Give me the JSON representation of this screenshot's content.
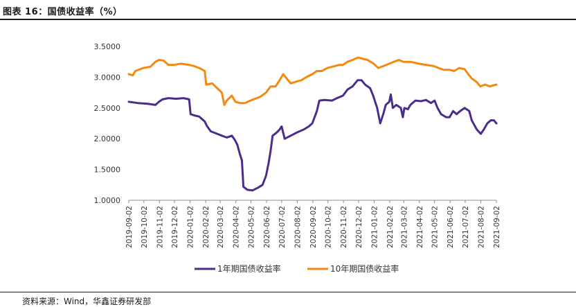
{
  "figure_title": "图表 16：国债收益率（%）",
  "source_note": "资料来源：Wind，华鑫证券研发部",
  "colors": {
    "series_1y": "#4b2c8c",
    "series_10y": "#f5890f",
    "axis": "#8c8c8c"
  },
  "chart_data": {
    "type": "line",
    "title": "",
    "xlabel": "",
    "ylabel": "",
    "ylim": [
      1.0,
      3.5
    ],
    "y_ticks": [
      "1.0000",
      "1.5000",
      "2.0000",
      "2.5000",
      "3.0000",
      "3.5000"
    ],
    "x_range": [
      "2019-09-02",
      "2021-09-02"
    ],
    "x_ticks": [
      "2019-09-02",
      "2019-10-02",
      "2019-11-02",
      "2019-12-02",
      "2020-01-02",
      "2020-02-02",
      "2020-03-02",
      "2020-04-02",
      "2020-05-02",
      "2020-06-02",
      "2020-07-02",
      "2020-08-02",
      "2020-09-02",
      "2020-10-02",
      "2020-11-02",
      "2020-12-02",
      "2021-01-02",
      "2021-02-02",
      "2021-03-02",
      "2021-04-02",
      "2021-05-02",
      "2021-06-02",
      "2021-07-02",
      "2021-08-02",
      "2021-09-02"
    ],
    "grid": false,
    "legend_position": "bottom",
    "series": [
      {
        "name": "1年期国债收益率",
        "color": "#4b2c8c",
        "points": [
          [
            "2019-09-02",
            2.6
          ],
          [
            "2019-09-20",
            2.58
          ],
          [
            "2019-10-08",
            2.57
          ],
          [
            "2019-10-25",
            2.55
          ],
          [
            "2019-11-01",
            2.6
          ],
          [
            "2019-11-08",
            2.64
          ],
          [
            "2019-11-20",
            2.66
          ],
          [
            "2019-12-05",
            2.65
          ],
          [
            "2019-12-20",
            2.66
          ],
          [
            "2019-12-31",
            2.64
          ],
          [
            "2020-01-03",
            2.4
          ],
          [
            "2020-01-10",
            2.38
          ],
          [
            "2020-01-20",
            2.36
          ],
          [
            "2020-01-31",
            2.28
          ],
          [
            "2020-02-05",
            2.2
          ],
          [
            "2020-02-12",
            2.12
          ],
          [
            "2020-02-25",
            2.08
          ],
          [
            "2020-03-05",
            2.05
          ],
          [
            "2020-03-15",
            2.02
          ],
          [
            "2020-03-25",
            2.05
          ],
          [
            "2020-03-31",
            1.98
          ],
          [
            "2020-04-05",
            1.9
          ],
          [
            "2020-04-10",
            1.75
          ],
          [
            "2020-04-14",
            1.65
          ],
          [
            "2020-04-17",
            1.22
          ],
          [
            "2020-04-25",
            1.17
          ],
          [
            "2020-05-05",
            1.16
          ],
          [
            "2020-05-15",
            1.2
          ],
          [
            "2020-05-25",
            1.25
          ],
          [
            "2020-06-01",
            1.4
          ],
          [
            "2020-06-06",
            1.6
          ],
          [
            "2020-06-10",
            1.8
          ],
          [
            "2020-06-14",
            2.05
          ],
          [
            "2020-06-22",
            2.1
          ],
          [
            "2020-06-28",
            2.15
          ],
          [
            "2020-07-02",
            2.2
          ],
          [
            "2020-07-08",
            2.0
          ],
          [
            "2020-07-20",
            2.05
          ],
          [
            "2020-08-01",
            2.1
          ],
          [
            "2020-08-15",
            2.15
          ],
          [
            "2020-08-25",
            2.2
          ],
          [
            "2020-09-01",
            2.25
          ],
          [
            "2020-09-10",
            2.45
          ],
          [
            "2020-09-15",
            2.62
          ],
          [
            "2020-09-25",
            2.63
          ],
          [
            "2020-10-10",
            2.62
          ],
          [
            "2020-10-20",
            2.66
          ],
          [
            "2020-11-01",
            2.7
          ],
          [
            "2020-11-10",
            2.8
          ],
          [
            "2020-11-20",
            2.85
          ],
          [
            "2020-11-30",
            2.95
          ],
          [
            "2020-12-08",
            2.95
          ],
          [
            "2020-12-15",
            2.88
          ],
          [
            "2020-12-25",
            2.82
          ],
          [
            "2020-12-31",
            2.7
          ],
          [
            "2021-01-08",
            2.5
          ],
          [
            "2021-01-14",
            2.25
          ],
          [
            "2021-01-20",
            2.4
          ],
          [
            "2021-01-25",
            2.55
          ],
          [
            "2021-02-01",
            2.6
          ],
          [
            "2021-02-04",
            2.72
          ],
          [
            "2021-02-08",
            2.5
          ],
          [
            "2021-02-15",
            2.55
          ],
          [
            "2021-02-24",
            2.5
          ],
          [
            "2021-02-28",
            2.35
          ],
          [
            "2021-03-03",
            2.5
          ],
          [
            "2021-03-10",
            2.48
          ],
          [
            "2021-03-15",
            2.55
          ],
          [
            "2021-03-25",
            2.62
          ],
          [
            "2021-04-05",
            2.61
          ],
          [
            "2021-04-15",
            2.63
          ],
          [
            "2021-04-25",
            2.58
          ],
          [
            "2021-05-02",
            2.62
          ],
          [
            "2021-05-08",
            2.5
          ],
          [
            "2021-05-15",
            2.4
          ],
          [
            "2021-05-25",
            2.35
          ],
          [
            "2021-06-01",
            2.35
          ],
          [
            "2021-06-08",
            2.45
          ],
          [
            "2021-06-15",
            2.4
          ],
          [
            "2021-06-22",
            2.45
          ],
          [
            "2021-07-01",
            2.5
          ],
          [
            "2021-07-10",
            2.45
          ],
          [
            "2021-07-15",
            2.3
          ],
          [
            "2021-07-25",
            2.15
          ],
          [
            "2021-08-02",
            2.08
          ],
          [
            "2021-08-08",
            2.15
          ],
          [
            "2021-08-15",
            2.25
          ],
          [
            "2021-08-22",
            2.3
          ],
          [
            "2021-08-28",
            2.3
          ],
          [
            "2021-09-02",
            2.25
          ]
        ]
      },
      {
        "name": "10年期国债收益率",
        "color": "#f5890f",
        "points": [
          [
            "2019-09-02",
            3.05
          ],
          [
            "2019-09-10",
            3.03
          ],
          [
            "2019-09-15",
            3.1
          ],
          [
            "2019-10-01",
            3.15
          ],
          [
            "2019-10-15",
            3.17
          ],
          [
            "2019-10-25",
            3.25
          ],
          [
            "2019-11-01",
            3.28
          ],
          [
            "2019-11-10",
            3.27
          ],
          [
            "2019-11-20",
            3.2
          ],
          [
            "2019-12-01",
            3.2
          ],
          [
            "2019-12-15",
            3.22
          ],
          [
            "2019-12-31",
            3.2
          ],
          [
            "2020-01-10",
            3.18
          ],
          [
            "2020-01-20",
            3.15
          ],
          [
            "2020-01-31",
            3.1
          ],
          [
            "2020-02-03",
            2.88
          ],
          [
            "2020-02-15",
            2.9
          ],
          [
            "2020-02-25",
            2.82
          ],
          [
            "2020-03-05",
            2.75
          ],
          [
            "2020-03-10",
            2.55
          ],
          [
            "2020-03-15",
            2.62
          ],
          [
            "2020-03-25",
            2.7
          ],
          [
            "2020-04-01",
            2.6
          ],
          [
            "2020-04-10",
            2.58
          ],
          [
            "2020-04-20",
            2.58
          ],
          [
            "2020-05-01",
            2.62
          ],
          [
            "2020-05-10",
            2.65
          ],
          [
            "2020-05-20",
            2.68
          ],
          [
            "2020-06-01",
            2.75
          ],
          [
            "2020-06-10",
            2.85
          ],
          [
            "2020-06-20",
            2.85
          ],
          [
            "2020-06-28",
            2.95
          ],
          [
            "2020-07-05",
            3.05
          ],
          [
            "2020-07-10",
            3.0
          ],
          [
            "2020-07-20",
            2.9
          ],
          [
            "2020-08-01",
            2.93
          ],
          [
            "2020-08-10",
            2.95
          ],
          [
            "2020-08-20",
            3.0
          ],
          [
            "2020-09-01",
            3.05
          ],
          [
            "2020-09-10",
            3.1
          ],
          [
            "2020-09-20",
            3.1
          ],
          [
            "2020-10-01",
            3.15
          ],
          [
            "2020-10-15",
            3.18
          ],
          [
            "2020-10-25",
            3.2
          ],
          [
            "2020-11-01",
            3.2
          ],
          [
            "2020-11-10",
            3.25
          ],
          [
            "2020-11-20",
            3.28
          ],
          [
            "2020-12-01",
            3.32
          ],
          [
            "2020-12-10",
            3.3
          ],
          [
            "2020-12-20",
            3.28
          ],
          [
            "2021-01-01",
            3.22
          ],
          [
            "2021-01-10",
            3.15
          ],
          [
            "2021-01-20",
            3.18
          ],
          [
            "2021-02-01",
            3.22
          ],
          [
            "2021-02-10",
            3.25
          ],
          [
            "2021-02-20",
            3.28
          ],
          [
            "2021-03-01",
            3.25
          ],
          [
            "2021-03-15",
            3.25
          ],
          [
            "2021-04-01",
            3.22
          ],
          [
            "2021-04-15",
            3.2
          ],
          [
            "2021-05-01",
            3.18
          ],
          [
            "2021-05-10",
            3.15
          ],
          [
            "2021-05-20",
            3.12
          ],
          [
            "2021-06-01",
            3.12
          ],
          [
            "2021-06-10",
            3.1
          ],
          [
            "2021-06-20",
            3.15
          ],
          [
            "2021-07-01",
            3.13
          ],
          [
            "2021-07-08",
            3.05
          ],
          [
            "2021-07-15",
            2.98
          ],
          [
            "2021-07-25",
            2.92
          ],
          [
            "2021-08-01",
            2.85
          ],
          [
            "2021-08-10",
            2.88
          ],
          [
            "2021-08-20",
            2.85
          ],
          [
            "2021-08-28",
            2.87
          ],
          [
            "2021-09-02",
            2.88
          ]
        ]
      }
    ]
  }
}
